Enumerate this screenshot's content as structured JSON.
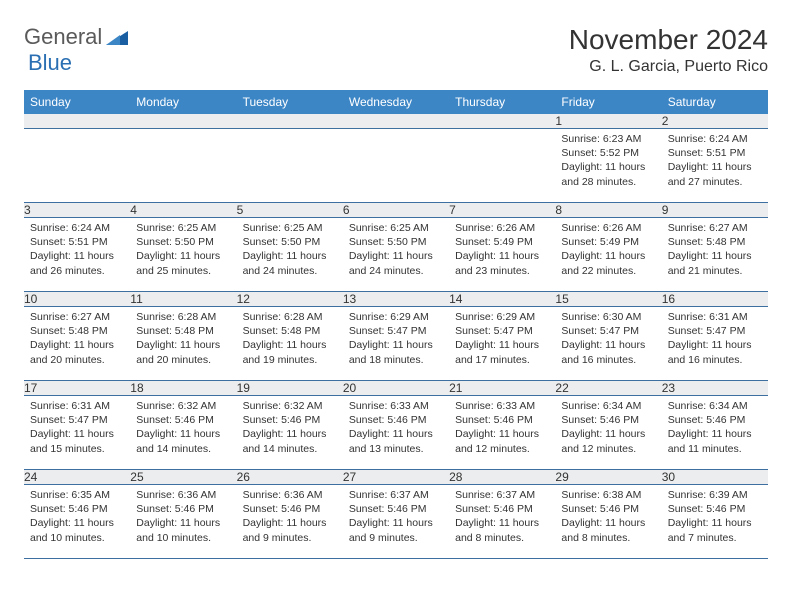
{
  "logo": {
    "general": "General",
    "blue": "Blue"
  },
  "title": "November 2024",
  "location": "G. L. Garcia, Puerto Rico",
  "colors": {
    "header_bg": "#3d86c6",
    "header_fg": "#ffffff",
    "daynum_bg": "#ecedee",
    "border": "#5a7fa8",
    "logo_gray": "#5a5a5a",
    "logo_blue": "#2b6fb3"
  },
  "dayHeaders": [
    "Sunday",
    "Monday",
    "Tuesday",
    "Wednesday",
    "Thursday",
    "Friday",
    "Saturday"
  ],
  "weeks": [
    [
      {
        "day": "",
        "sunrise": "",
        "sunset": "",
        "daylight": ""
      },
      {
        "day": "",
        "sunrise": "",
        "sunset": "",
        "daylight": ""
      },
      {
        "day": "",
        "sunrise": "",
        "sunset": "",
        "daylight": ""
      },
      {
        "day": "",
        "sunrise": "",
        "sunset": "",
        "daylight": ""
      },
      {
        "day": "",
        "sunrise": "",
        "sunset": "",
        "daylight": ""
      },
      {
        "day": "1",
        "sunrise": "Sunrise: 6:23 AM",
        "sunset": "Sunset: 5:52 PM",
        "daylight": "Daylight: 11 hours and 28 minutes."
      },
      {
        "day": "2",
        "sunrise": "Sunrise: 6:24 AM",
        "sunset": "Sunset: 5:51 PM",
        "daylight": "Daylight: 11 hours and 27 minutes."
      }
    ],
    [
      {
        "day": "3",
        "sunrise": "Sunrise: 6:24 AM",
        "sunset": "Sunset: 5:51 PM",
        "daylight": "Daylight: 11 hours and 26 minutes."
      },
      {
        "day": "4",
        "sunrise": "Sunrise: 6:25 AM",
        "sunset": "Sunset: 5:50 PM",
        "daylight": "Daylight: 11 hours and 25 minutes."
      },
      {
        "day": "5",
        "sunrise": "Sunrise: 6:25 AM",
        "sunset": "Sunset: 5:50 PM",
        "daylight": "Daylight: 11 hours and 24 minutes."
      },
      {
        "day": "6",
        "sunrise": "Sunrise: 6:25 AM",
        "sunset": "Sunset: 5:50 PM",
        "daylight": "Daylight: 11 hours and 24 minutes."
      },
      {
        "day": "7",
        "sunrise": "Sunrise: 6:26 AM",
        "sunset": "Sunset: 5:49 PM",
        "daylight": "Daylight: 11 hours and 23 minutes."
      },
      {
        "day": "8",
        "sunrise": "Sunrise: 6:26 AM",
        "sunset": "Sunset: 5:49 PM",
        "daylight": "Daylight: 11 hours and 22 minutes."
      },
      {
        "day": "9",
        "sunrise": "Sunrise: 6:27 AM",
        "sunset": "Sunset: 5:48 PM",
        "daylight": "Daylight: 11 hours and 21 minutes."
      }
    ],
    [
      {
        "day": "10",
        "sunrise": "Sunrise: 6:27 AM",
        "sunset": "Sunset: 5:48 PM",
        "daylight": "Daylight: 11 hours and 20 minutes."
      },
      {
        "day": "11",
        "sunrise": "Sunrise: 6:28 AM",
        "sunset": "Sunset: 5:48 PM",
        "daylight": "Daylight: 11 hours and 20 minutes."
      },
      {
        "day": "12",
        "sunrise": "Sunrise: 6:28 AM",
        "sunset": "Sunset: 5:48 PM",
        "daylight": "Daylight: 11 hours and 19 minutes."
      },
      {
        "day": "13",
        "sunrise": "Sunrise: 6:29 AM",
        "sunset": "Sunset: 5:47 PM",
        "daylight": "Daylight: 11 hours and 18 minutes."
      },
      {
        "day": "14",
        "sunrise": "Sunrise: 6:29 AM",
        "sunset": "Sunset: 5:47 PM",
        "daylight": "Daylight: 11 hours and 17 minutes."
      },
      {
        "day": "15",
        "sunrise": "Sunrise: 6:30 AM",
        "sunset": "Sunset: 5:47 PM",
        "daylight": "Daylight: 11 hours and 16 minutes."
      },
      {
        "day": "16",
        "sunrise": "Sunrise: 6:31 AM",
        "sunset": "Sunset: 5:47 PM",
        "daylight": "Daylight: 11 hours and 16 minutes."
      }
    ],
    [
      {
        "day": "17",
        "sunrise": "Sunrise: 6:31 AM",
        "sunset": "Sunset: 5:47 PM",
        "daylight": "Daylight: 11 hours and 15 minutes."
      },
      {
        "day": "18",
        "sunrise": "Sunrise: 6:32 AM",
        "sunset": "Sunset: 5:46 PM",
        "daylight": "Daylight: 11 hours and 14 minutes."
      },
      {
        "day": "19",
        "sunrise": "Sunrise: 6:32 AM",
        "sunset": "Sunset: 5:46 PM",
        "daylight": "Daylight: 11 hours and 14 minutes."
      },
      {
        "day": "20",
        "sunrise": "Sunrise: 6:33 AM",
        "sunset": "Sunset: 5:46 PM",
        "daylight": "Daylight: 11 hours and 13 minutes."
      },
      {
        "day": "21",
        "sunrise": "Sunrise: 6:33 AM",
        "sunset": "Sunset: 5:46 PM",
        "daylight": "Daylight: 11 hours and 12 minutes."
      },
      {
        "day": "22",
        "sunrise": "Sunrise: 6:34 AM",
        "sunset": "Sunset: 5:46 PM",
        "daylight": "Daylight: 11 hours and 12 minutes."
      },
      {
        "day": "23",
        "sunrise": "Sunrise: 6:34 AM",
        "sunset": "Sunset: 5:46 PM",
        "daylight": "Daylight: 11 hours and 11 minutes."
      }
    ],
    [
      {
        "day": "24",
        "sunrise": "Sunrise: 6:35 AM",
        "sunset": "Sunset: 5:46 PM",
        "daylight": "Daylight: 11 hours and 10 minutes."
      },
      {
        "day": "25",
        "sunrise": "Sunrise: 6:36 AM",
        "sunset": "Sunset: 5:46 PM",
        "daylight": "Daylight: 11 hours and 10 minutes."
      },
      {
        "day": "26",
        "sunrise": "Sunrise: 6:36 AM",
        "sunset": "Sunset: 5:46 PM",
        "daylight": "Daylight: 11 hours and 9 minutes."
      },
      {
        "day": "27",
        "sunrise": "Sunrise: 6:37 AM",
        "sunset": "Sunset: 5:46 PM",
        "daylight": "Daylight: 11 hours and 9 minutes."
      },
      {
        "day": "28",
        "sunrise": "Sunrise: 6:37 AM",
        "sunset": "Sunset: 5:46 PM",
        "daylight": "Daylight: 11 hours and 8 minutes."
      },
      {
        "day": "29",
        "sunrise": "Sunrise: 6:38 AM",
        "sunset": "Sunset: 5:46 PM",
        "daylight": "Daylight: 11 hours and 8 minutes."
      },
      {
        "day": "30",
        "sunrise": "Sunrise: 6:39 AM",
        "sunset": "Sunset: 5:46 PM",
        "daylight": "Daylight: 11 hours and 7 minutes."
      }
    ]
  ]
}
